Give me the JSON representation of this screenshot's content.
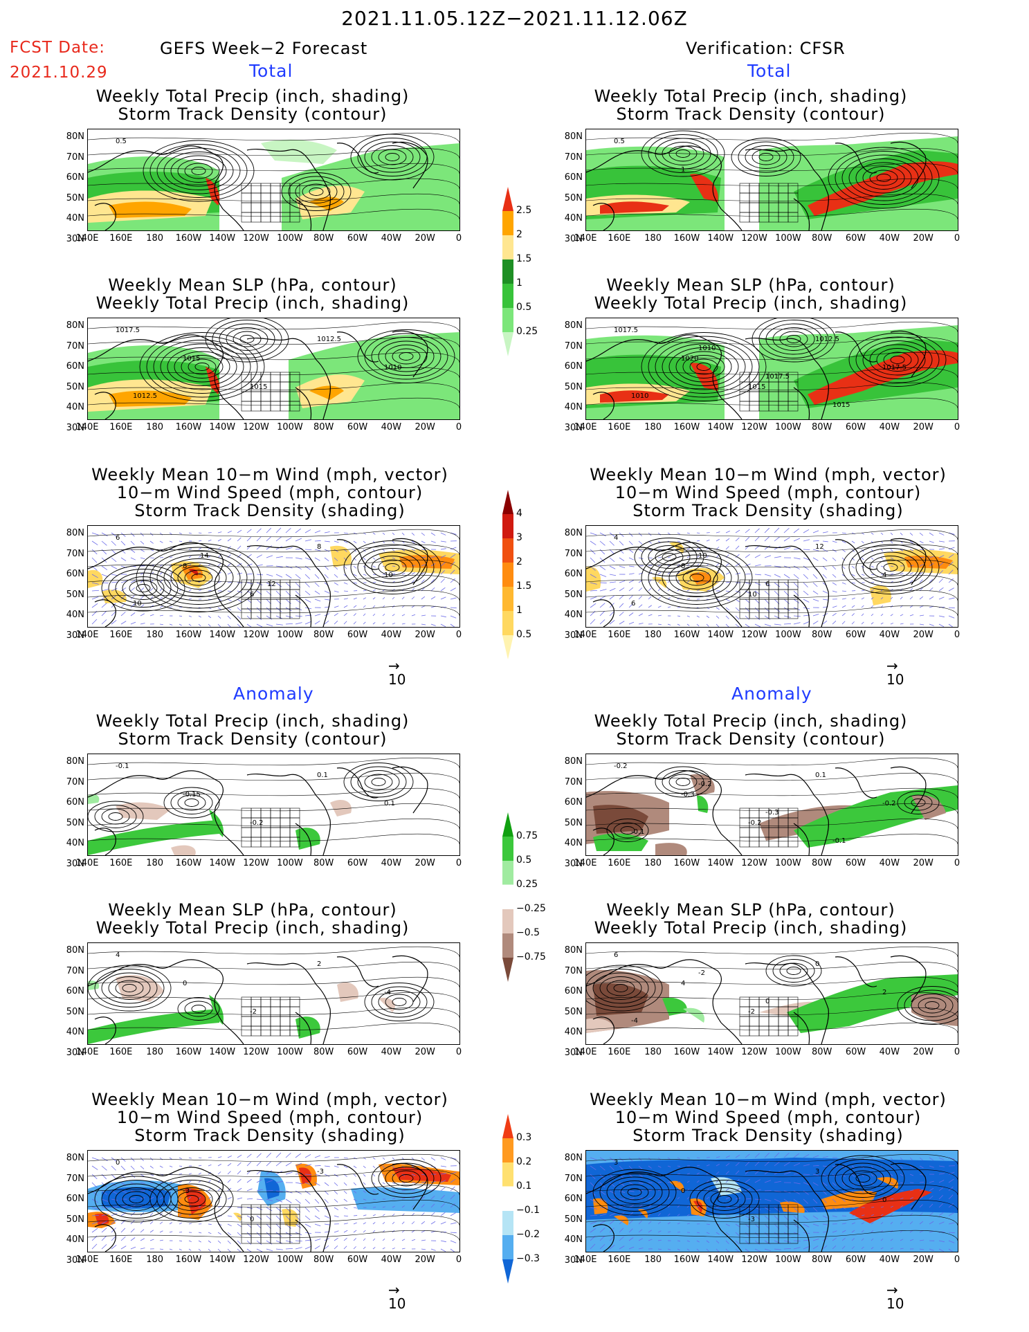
{
  "header": {
    "title": "2021.11.05.12Z−2021.11.12.06Z",
    "fcst_label": "FCST Date:",
    "fcst_date": "2021.10.29",
    "left_header": "GEFS Week−2 Forecast",
    "right_header": "Verification: CFSR",
    "total": "Total",
    "anomaly": "Anomaly"
  },
  "titles": {
    "precip_storm": [
      "Weekly Total Precip (inch, shading)",
      "Storm Track Density (contour)"
    ],
    "slp_precip": [
      "Weekly Mean SLP (hPa, contour)",
      "Weekly Total Precip (inch, shading)"
    ],
    "wind_storm": [
      "Weekly Mean 10−m Wind (mph, vector)",
      "10−m Wind Speed (mph, contour)",
      "Storm Track Density (shading)"
    ]
  },
  "axes": {
    "lat_labels": [
      "80N",
      "70N",
      "60N",
      "50N",
      "40N",
      "30N"
    ],
    "lon_labels": [
      "140E",
      "160E",
      "180",
      "160W",
      "140W",
      "120W",
      "100W",
      "80W",
      "60W",
      "40W",
      "20W",
      "0"
    ]
  },
  "reference_vector": "10",
  "colorbars": {
    "precip_total": {
      "labels": [
        "0.25",
        "0.5",
        "1",
        "1.5",
        "2",
        "2.5"
      ],
      "colors": [
        "#c8f5c3",
        "#7ce67a",
        "#38c33a",
        "#1e8f24",
        "#ffe690",
        "#ffa500",
        "#e83015"
      ]
    },
    "storm_total": {
      "labels": [
        "0.5",
        "1",
        "1.5",
        "2",
        "3",
        "4"
      ],
      "colors": [
        "#fff3b0",
        "#ffd860",
        "#ffb830",
        "#ff8c10",
        "#f05010",
        "#d01a10",
        "#8a0000"
      ]
    },
    "precip_anom": {
      "labels": [
        "0.75",
        "0.5",
        "0.25",
        "−0.25",
        "−0.5",
        "−0.75"
      ],
      "colors": [
        "#10a010",
        "#3cc83c",
        "#a0eba0",
        "#ffffff",
        "#e3c8bc",
        "#b08a7c",
        "#7a4a3a"
      ]
    },
    "storm_anom": {
      "labels": [
        "0.3",
        "0.2",
        "0.1",
        "−0.1",
        "−0.2",
        "−0.3"
      ],
      "colors": [
        "#f03c14",
        "#ff9a20",
        "#ffe070",
        "#ffffff",
        "#b5e4f5",
        "#55aef0",
        "#1066d6"
      ]
    }
  },
  "panels": [
    {
      "id": "fcst-total-precip",
      "side": "forecast",
      "section": "total",
      "contour_labels": [
        "0.5"
      ]
    },
    {
      "id": "fcst-total-slp",
      "side": "forecast",
      "section": "total",
      "contour_labels": [
        "1017.5",
        "1015",
        "1015",
        "1012.5",
        "1010",
        "1012.5"
      ]
    },
    {
      "id": "fcst-total-wind",
      "side": "forecast",
      "section": "total",
      "contour_labels": [
        "6",
        "8",
        "6",
        "8",
        "10",
        "10",
        "14",
        "12"
      ]
    },
    {
      "id": "verif-total-precip",
      "side": "verification",
      "section": "total",
      "contour_labels": [
        "0.5",
        "1"
      ]
    },
    {
      "id": "verif-total-slp",
      "side": "verification",
      "section": "total",
      "contour_labels": [
        "1017.5",
        "1020",
        "1015",
        "1012.5",
        "1017.5",
        "1010",
        "1010",
        "1017.5",
        "1015"
      ]
    },
    {
      "id": "verif-total-wind",
      "side": "verification",
      "section": "total",
      "contour_labels": [
        "4",
        "8",
        "10",
        "12",
        "4",
        "6",
        "10",
        "6"
      ]
    },
    {
      "id": "fcst-anom-precip",
      "side": "forecast",
      "section": "anomaly",
      "contour_labels": [
        "-0.1",
        "-0.15",
        "-0.2",
        "0.1",
        "0.1"
      ]
    },
    {
      "id": "fcst-anom-slp",
      "side": "forecast",
      "section": "anomaly",
      "contour_labels": [
        "4",
        "0",
        "-2",
        "2",
        "-4"
      ]
    },
    {
      "id": "fcst-anom-wind",
      "side": "forecast",
      "section": "anomaly",
      "contour_labels": [
        "0",
        "-3",
        "0",
        "-3"
      ]
    },
    {
      "id": "verif-anom-precip",
      "side": "verification",
      "section": "anomaly",
      "contour_labels": [
        "-0.2",
        "-0.3",
        "-0.2",
        "0.1",
        "-0.2",
        "-0.1",
        "-0.2",
        "-0.3",
        "-0.1"
      ]
    },
    {
      "id": "verif-anom-slp",
      "side": "verification",
      "section": "anomaly",
      "contour_labels": [
        "6",
        "4",
        "-2",
        "0",
        "2",
        "-4",
        "-2",
        "0"
      ]
    },
    {
      "id": "verif-anom-wind",
      "side": "verification",
      "section": "anomaly",
      "contour_labels": [
        "3",
        "0",
        "-3",
        "3",
        "0"
      ]
    }
  ]
}
